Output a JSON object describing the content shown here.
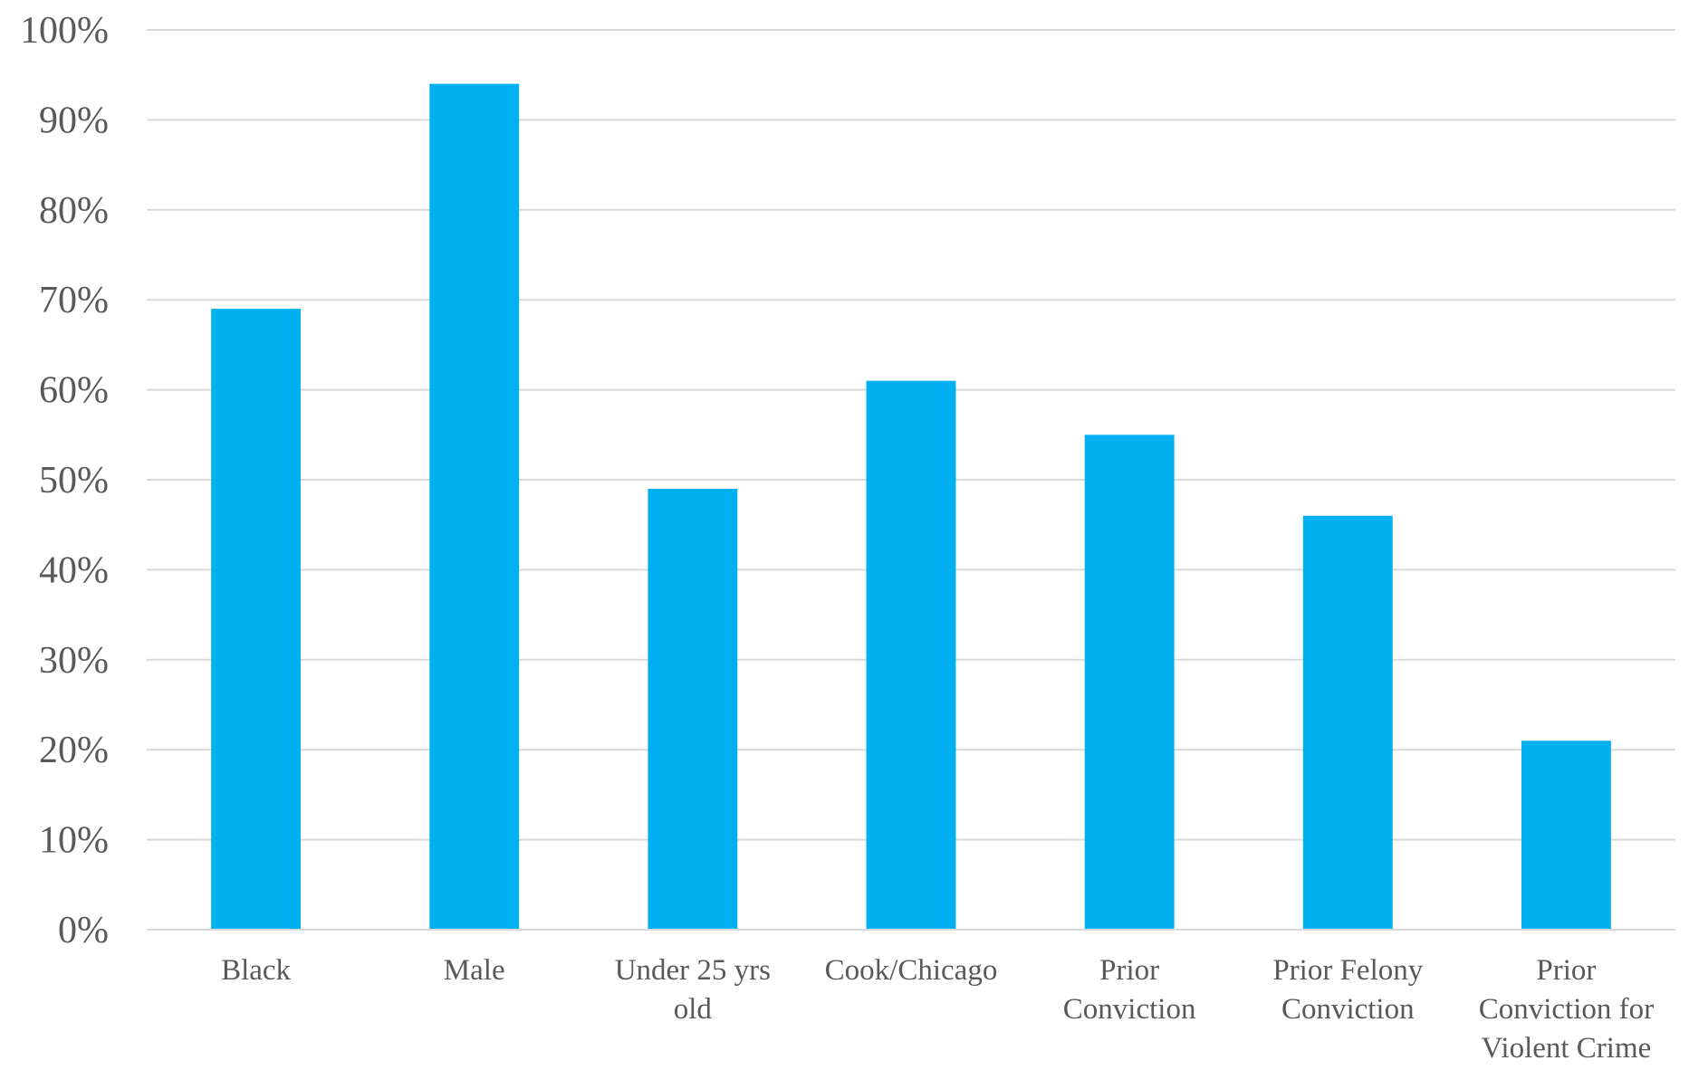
{
  "chart_data": {
    "type": "bar",
    "categories": [
      [
        "Black"
      ],
      [
        "Male"
      ],
      [
        "Under 25 yrs",
        "old"
      ],
      [
        "Cook/Chicago"
      ],
      [
        "Prior",
        "Conviction"
      ],
      [
        "Prior Felony",
        "Conviction"
      ],
      [
        "Prior",
        "Conviction for",
        "Violent Crime"
      ]
    ],
    "values": [
      69,
      94,
      49,
      61,
      55,
      46,
      21
    ],
    "value_unit": "%",
    "ylim": [
      0,
      100
    ],
    "yticks": [
      "0%",
      "10%",
      "20%",
      "30%",
      "40%",
      "50%",
      "60%",
      "70%",
      "80%",
      "90%",
      "100%"
    ],
    "title": "",
    "xlabel": "",
    "ylabel": "",
    "grid": true,
    "bar_color": "#00B0F0",
    "grid_color": "#D9D9D9",
    "text_color": "#595959"
  }
}
